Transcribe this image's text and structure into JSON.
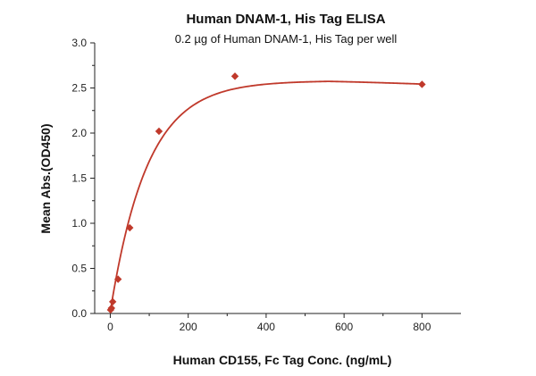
{
  "chart_data": {
    "type": "scatter",
    "title": "Human DNAM-1, His Tag ELISA",
    "subtitle": "0.2 µg of Human DNAM-1, His Tag per well",
    "xlabel": "Human CD155, Fc Tag Conc. (ng/mL)",
    "ylabel": "Mean Abs.(OD450)",
    "xlim": [
      -40,
      900
    ],
    "ylim": [
      0,
      3.0
    ],
    "xticks": [
      0,
      200,
      400,
      600,
      800
    ],
    "yticks": [
      0.0,
      0.5,
      1.0,
      1.5,
      2.0,
      2.5,
      3.0
    ],
    "xtick_labels": [
      "0",
      "200",
      "400",
      "600",
      "800"
    ],
    "ytick_labels": [
      "0.0",
      "0.5",
      "1.0",
      "1.5",
      "2.0",
      "2.5",
      "3.0"
    ],
    "grid": false,
    "series": [
      {
        "x": [
          0.8,
          3.1,
          6.25,
          20,
          50,
          125,
          320,
          800
        ],
        "y": [
          0.04,
          0.06,
          0.13,
          0.38,
          0.95,
          2.02,
          2.63,
          2.54
        ],
        "marker": "diamond",
        "color": "#c0392b",
        "fit": "4PL curve"
      }
    ]
  }
}
